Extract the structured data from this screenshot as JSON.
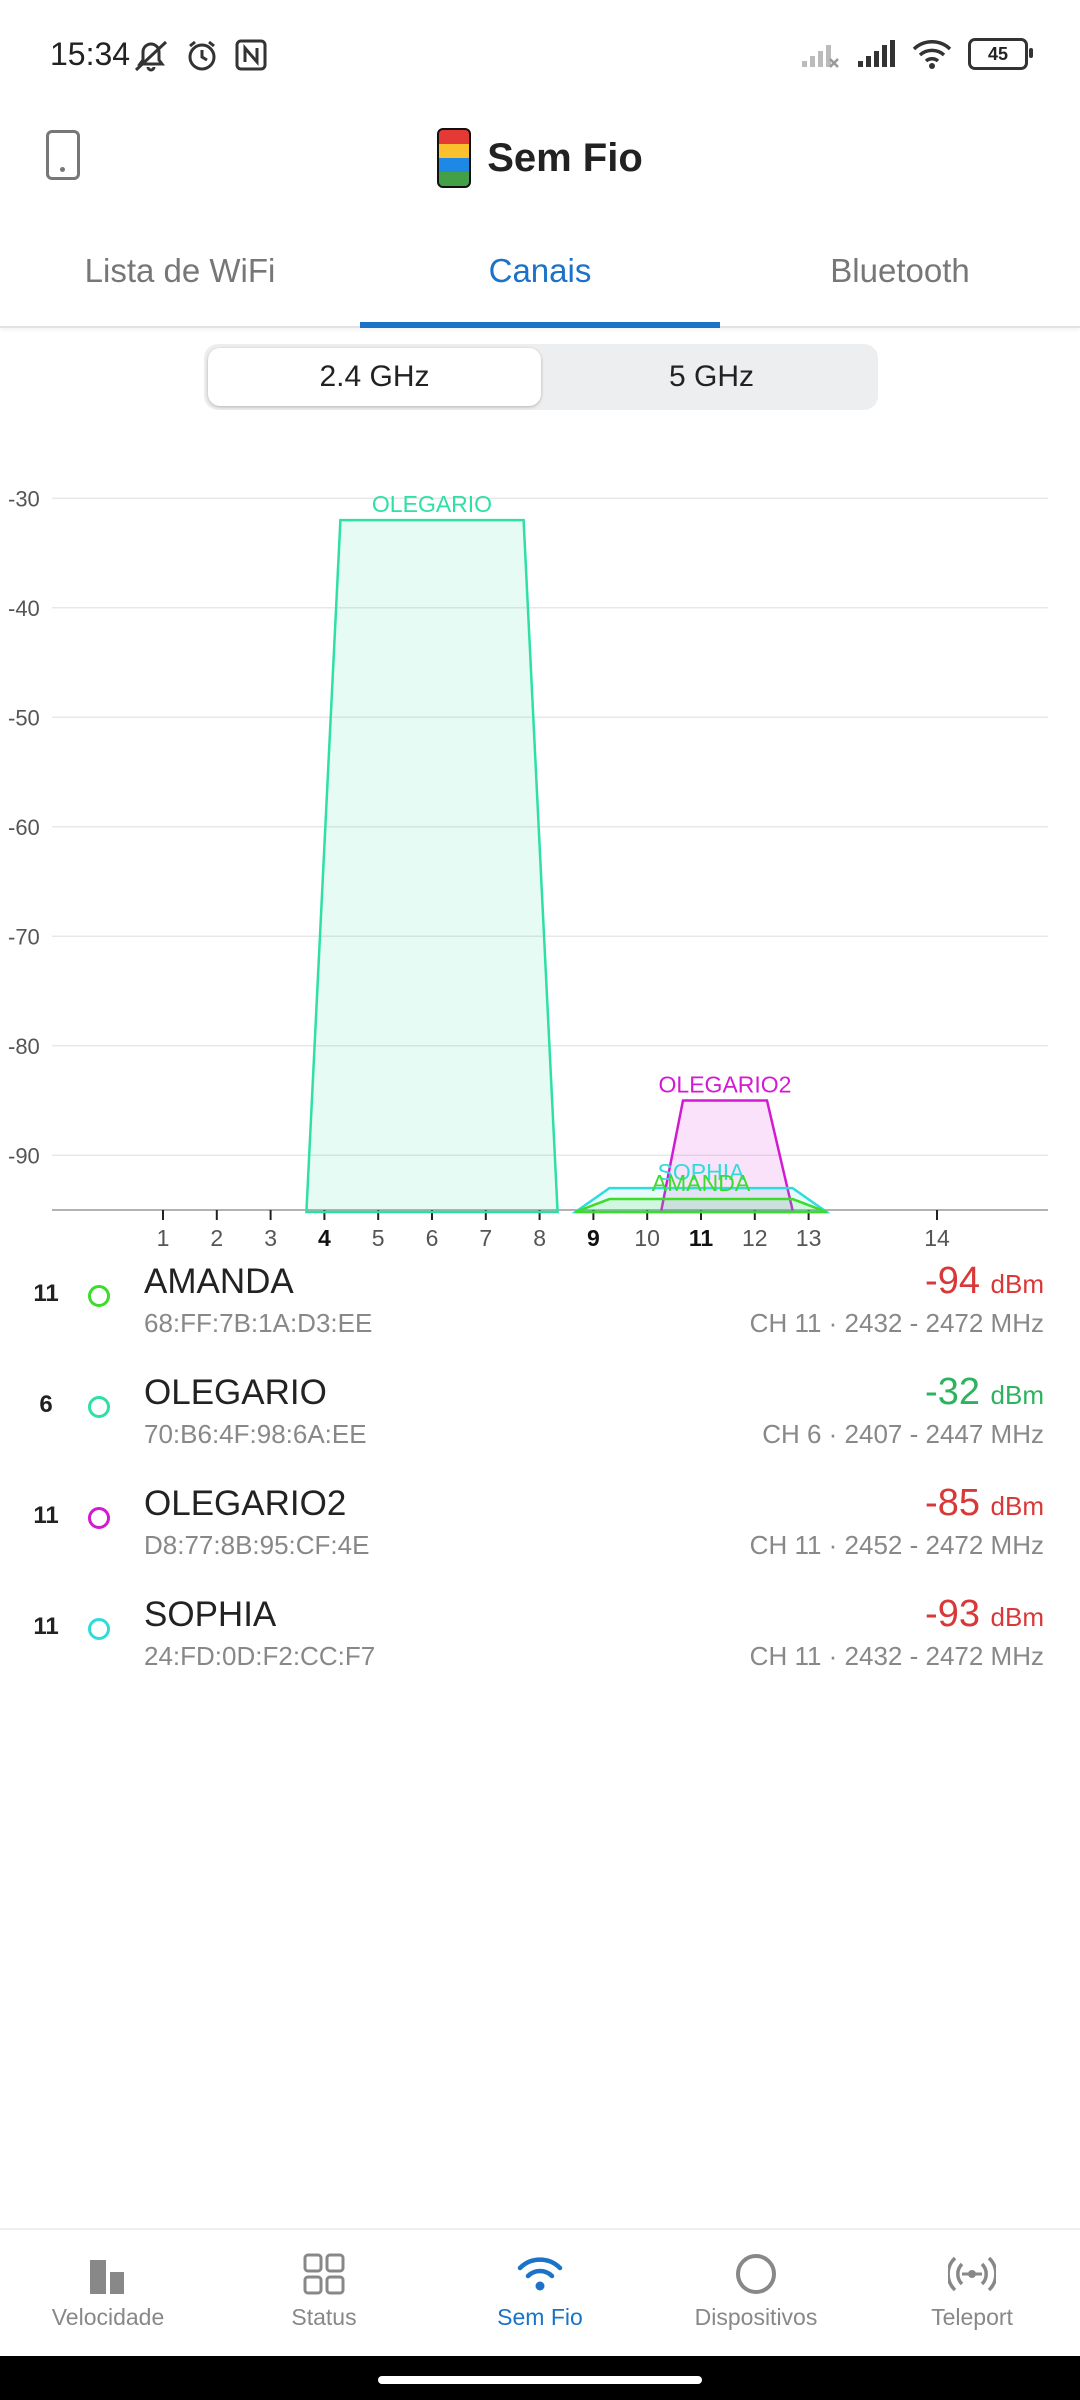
{
  "status_bar": {
    "time": "15:34",
    "battery": "45"
  },
  "app": {
    "title": "Sem Fio"
  },
  "tabs": [
    {
      "label": "Lista de WiFi"
    },
    {
      "label": "Canais"
    },
    {
      "label": "Bluetooth"
    }
  ],
  "band_toggle": {
    "option1": "2.4 GHz",
    "option2": "5 GHz",
    "selected": "2.4 GHz"
  },
  "chart_data": {
    "type": "area",
    "ylim": [
      -95,
      -30
    ],
    "y_ticks": [
      "-30",
      "-40",
      "-50",
      "-60",
      "-70",
      "-80",
      "-90"
    ],
    "x_ticks": [
      "1",
      "2",
      "3",
      "4",
      "5",
      "6",
      "7",
      "8",
      "9",
      "10",
      "11",
      "12",
      "13",
      "14"
    ],
    "x_bold_ticks": [
      "4",
      "9",
      "11"
    ],
    "series": [
      {
        "name": "OLEGARIO",
        "channel": 6,
        "dbm": -32,
        "color": "#2fe0a3"
      },
      {
        "name": "OLEGARIO2",
        "channel": 11,
        "dbm": -85,
        "color": "#d21ad2"
      },
      {
        "name": "SOPHIA",
        "channel": 11,
        "dbm": -93,
        "color": "#2fdcdc"
      },
      {
        "name": "AMANDA",
        "channel": 11,
        "dbm": -94,
        "color": "#3ddc2a"
      }
    ]
  },
  "networks": [
    {
      "channel": "11",
      "ssid": "AMANDA",
      "mac": "68:FF:7B:1A:D3:EE",
      "signal": "-94",
      "unit": "dBm",
      "freq": "CH 11 · 2432 - 2472 MHz",
      "dot_color": "#3ddc2a",
      "signal_color": "#d93838"
    },
    {
      "channel": "6",
      "ssid": "OLEGARIO",
      "mac": "70:B6:4F:98:6A:EE",
      "signal": "-32",
      "unit": "dBm",
      "freq": "CH 6 · 2407 - 2447 MHz",
      "dot_color": "#2fe0a3",
      "signal_color": "#2db35e"
    },
    {
      "channel": "11",
      "ssid": "OLEGARIO2",
      "mac": "D8:77:8B:95:CF:4E",
      "signal": "-85",
      "unit": "dBm",
      "freq": "CH 11 · 2452 - 2472 MHz",
      "dot_color": "#d21ad2",
      "signal_color": "#d93838"
    },
    {
      "channel": "11",
      "ssid": "SOPHIA",
      "mac": "24:FD:0D:F2:CC:F7",
      "signal": "-93",
      "unit": "dBm",
      "freq": "CH 11 · 2432 - 2472 MHz",
      "dot_color": "#2fdcdc",
      "signal_color": "#d93838"
    }
  ],
  "bottom_nav": [
    {
      "label": "Velocidade",
      "icon": "speed-bars-icon"
    },
    {
      "label": "Status",
      "icon": "grid-icon"
    },
    {
      "label": "Sem Fio",
      "icon": "wifi-icon",
      "active": true
    },
    {
      "label": "Dispositivos",
      "icon": "circle-icon"
    },
    {
      "label": "Teleport",
      "icon": "teleport-icon"
    }
  ]
}
